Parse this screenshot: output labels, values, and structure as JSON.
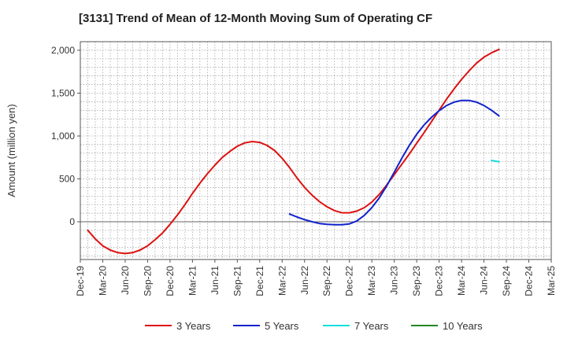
{
  "chart_data": {
    "type": "line",
    "title": "[3131]  Trend of Mean of 12-Month Moving Sum of Operating CF",
    "xlabel": "",
    "ylabel": "Amount (million yen)",
    "ylim": [
      -440,
      2100
    ],
    "yticks": [
      0,
      500,
      1000,
      1500,
      2000
    ],
    "ytick_labels": [
      "0",
      "500",
      "1,000",
      "1,500",
      "2,000"
    ],
    "x_categories": [
      "Dec-19",
      "Mar-20",
      "Jun-20",
      "Sep-20",
      "Dec-20",
      "Mar-21",
      "Jun-21",
      "Sep-21",
      "Dec-21",
      "Mar-22",
      "Jun-22",
      "Sep-22",
      "Dec-22",
      "Mar-23",
      "Jun-23",
      "Sep-23",
      "Dec-23",
      "Mar-24",
      "Jun-24",
      "Sep-24",
      "Dec-24",
      "Mar-25"
    ],
    "grid": true,
    "legend_position": "bottom",
    "series": [
      {
        "name": "3 Years",
        "color": "#dd1111",
        "points": [
          [
            1,
            -100
          ],
          [
            2,
            -200
          ],
          [
            3,
            -280
          ],
          [
            4,
            -330
          ],
          [
            5,
            -360
          ],
          [
            6,
            -370
          ],
          [
            7,
            -360
          ],
          [
            8,
            -330
          ],
          [
            9,
            -280
          ],
          [
            10,
            -210
          ],
          [
            11,
            -130
          ],
          [
            12,
            -30
          ],
          [
            13,
            80
          ],
          [
            14,
            200
          ],
          [
            15,
            330
          ],
          [
            16,
            450
          ],
          [
            17,
            560
          ],
          [
            18,
            660
          ],
          [
            19,
            750
          ],
          [
            20,
            820
          ],
          [
            21,
            880
          ],
          [
            22,
            920
          ],
          [
            23,
            935
          ],
          [
            24,
            925
          ],
          [
            25,
            890
          ],
          [
            26,
            830
          ],
          [
            27,
            740
          ],
          [
            28,
            630
          ],
          [
            29,
            510
          ],
          [
            30,
            400
          ],
          [
            31,
            310
          ],
          [
            32,
            235
          ],
          [
            33,
            175
          ],
          [
            34,
            130
          ],
          [
            35,
            105
          ],
          [
            36,
            105
          ],
          [
            37,
            125
          ],
          [
            38,
            165
          ],
          [
            39,
            230
          ],
          [
            40,
            320
          ],
          [
            41,
            430
          ],
          [
            42,
            550
          ],
          [
            43,
            670
          ],
          [
            44,
            790
          ],
          [
            45,
            915
          ],
          [
            46,
            1040
          ],
          [
            47,
            1170
          ],
          [
            48,
            1300
          ],
          [
            49,
            1430
          ],
          [
            50,
            1550
          ],
          [
            51,
            1660
          ],
          [
            52,
            1760
          ],
          [
            53,
            1850
          ],
          [
            54,
            1920
          ],
          [
            55,
            1970
          ],
          [
            56,
            2010
          ]
        ]
      },
      {
        "name": "5 Years",
        "color": "#1122cc",
        "points": [
          [
            28,
            90
          ],
          [
            29,
            55
          ],
          [
            30,
            25
          ],
          [
            31,
            0
          ],
          [
            32,
            -20
          ],
          [
            33,
            -30
          ],
          [
            34,
            -35
          ],
          [
            35,
            -35
          ],
          [
            36,
            -25
          ],
          [
            37,
            10
          ],
          [
            38,
            75
          ],
          [
            39,
            165
          ],
          [
            40,
            280
          ],
          [
            41,
            420
          ],
          [
            42,
            580
          ],
          [
            43,
            740
          ],
          [
            44,
            890
          ],
          [
            45,
            1020
          ],
          [
            46,
            1130
          ],
          [
            47,
            1220
          ],
          [
            48,
            1295
          ],
          [
            49,
            1355
          ],
          [
            50,
            1395
          ],
          [
            51,
            1415
          ],
          [
            52,
            1415
          ],
          [
            53,
            1395
          ],
          [
            54,
            1355
          ],
          [
            55,
            1300
          ],
          [
            56,
            1235
          ]
        ]
      },
      {
        "name": "7 Years",
        "color": "#11dddd",
        "points": [
          [
            55,
            715
          ],
          [
            56,
            700
          ]
        ]
      },
      {
        "name": "10 Years",
        "color": "#228822",
        "points": []
      }
    ]
  }
}
